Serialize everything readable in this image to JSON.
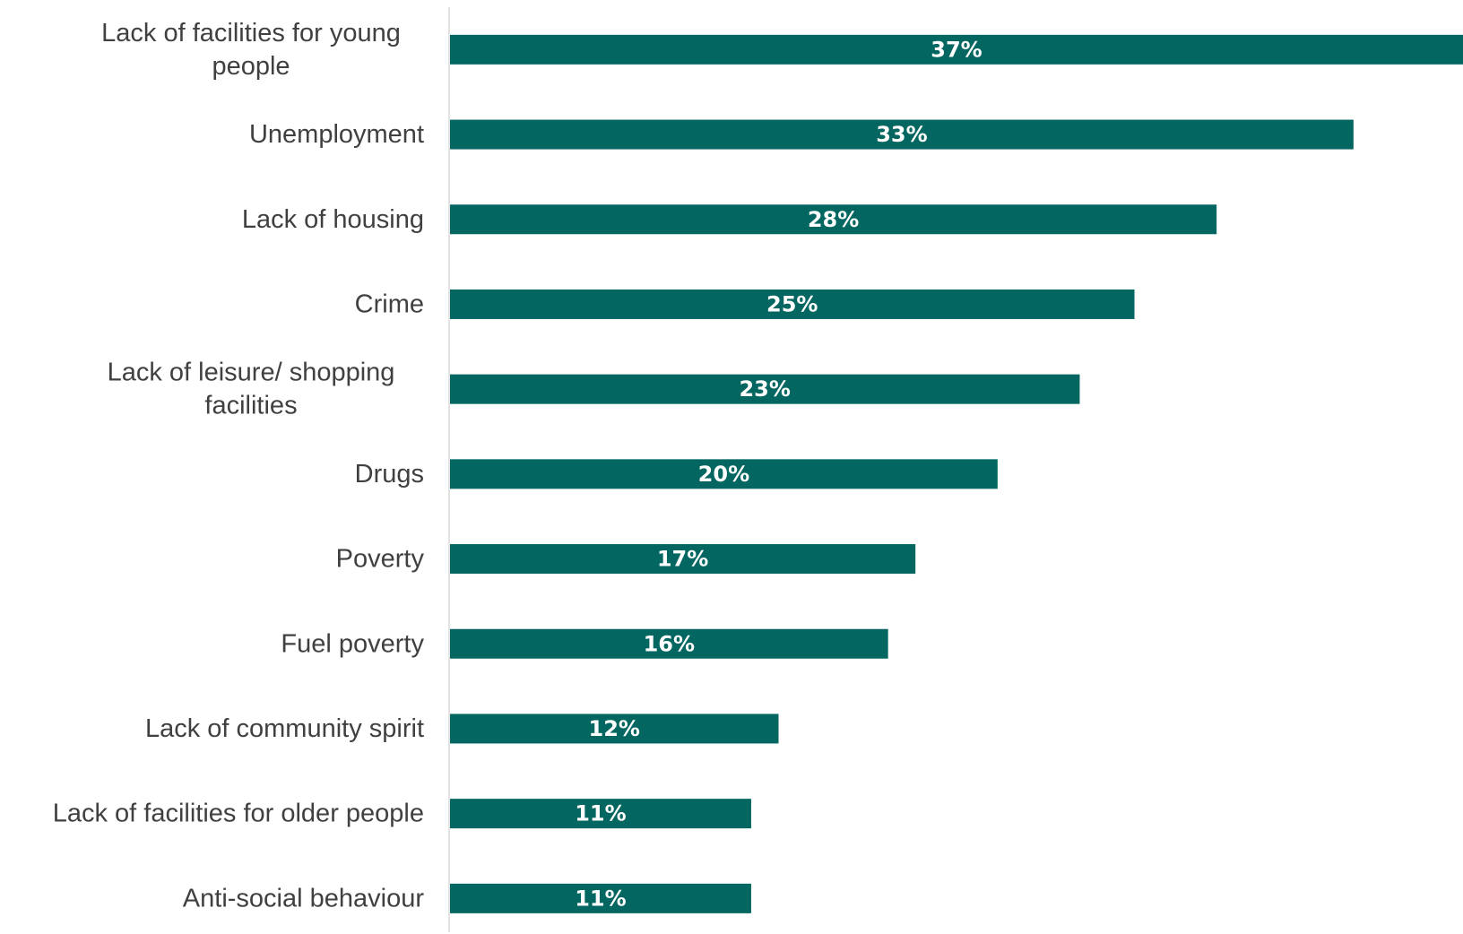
{
  "colors": {
    "bar": "#036660",
    "axis": "#d9d9d9",
    "category_text": "#404040",
    "value_text": "#ffffff"
  },
  "chart_data": {
    "type": "bar",
    "orientation": "horizontal",
    "categories": [
      [
        "Lack of facilities for young",
        "people"
      ],
      [
        "Unemployment"
      ],
      [
        "Lack of housing"
      ],
      [
        "Crime"
      ],
      [
        "Lack of leisure/ shopping",
        "facilities"
      ],
      [
        "Drugs"
      ],
      [
        "Poverty"
      ],
      [
        "Fuel poverty"
      ],
      [
        "Lack of community spirit"
      ],
      [
        "Lack of facilities for older people"
      ],
      [
        "Anti-social behaviour"
      ]
    ],
    "values": [
      37,
      33,
      28,
      25,
      23,
      20,
      17,
      16,
      12,
      11,
      11
    ],
    "value_labels": [
      "37%",
      "33%",
      "28%",
      "25%",
      "23%",
      "20%",
      "17%",
      "16%",
      "12%",
      "11%",
      "11%"
    ],
    "xlim": [
      0,
      37
    ],
    "grid": false,
    "legend": "none"
  }
}
